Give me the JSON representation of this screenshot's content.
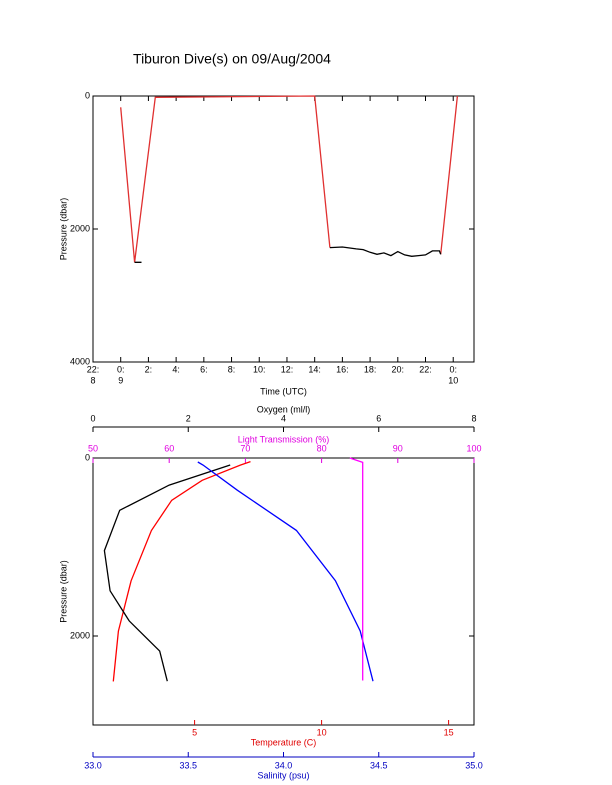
{
  "chart_data": [
    {
      "type": "line",
      "title": "Tiburon Dive(s) on 09/Aug/2004",
      "xlabel": "Time (UTC)",
      "ylabel": "Pressure (dbar)",
      "xlim": [
        -2,
        25.5
      ],
      "xticks": [
        {
          "value": -2,
          "label": "22:",
          "sublabel": "8"
        },
        {
          "value": 0,
          "label": "0:",
          "sublabel": "9"
        },
        {
          "value": 2,
          "label": "2:"
        },
        {
          "value": 4,
          "label": "4:"
        },
        {
          "value": 6,
          "label": "6:"
        },
        {
          "value": 8,
          "label": "8:"
        },
        {
          "value": 10,
          "label": "10:"
        },
        {
          "value": 12,
          "label": "12:"
        },
        {
          "value": 14,
          "label": "14:"
        },
        {
          "value": 16,
          "label": "16:"
        },
        {
          "value": 18,
          "label": "18:"
        },
        {
          "value": 20,
          "label": "20:"
        },
        {
          "value": 22,
          "label": "22:"
        },
        {
          "value": 24,
          "label": "0:",
          "sublabel": "10"
        }
      ],
      "ylim": [
        4000,
        0
      ],
      "yticks": [
        0,
        2000,
        4000
      ],
      "series": [
        {
          "color": "#e03030",
          "x": [
            0,
            1.0,
            2.5,
            14.0,
            15.1,
            null,
            23.1,
            24.3
          ],
          "values": [
            170,
            2500,
            20,
            0,
            2280,
            null,
            2380,
            0
          ]
        },
        {
          "color": "#000000",
          "x": [
            1.0,
            1.5,
            null,
            15.1,
            16,
            17,
            17.5,
            18,
            18.5,
            19,
            19.5,
            20,
            20.5,
            21,
            21.5,
            22,
            22.5,
            23,
            23.1
          ],
          "values": [
            2500,
            2500,
            null,
            2280,
            2270,
            2300,
            2310,
            2350,
            2380,
            2360,
            2400,
            2340,
            2390,
            2410,
            2400,
            2390,
            2330,
            2330,
            2380
          ]
        }
      ]
    },
    {
      "type": "line",
      "ylabel": "Pressure (dbar)",
      "ylim": [
        3000,
        0
      ],
      "yticks": [
        0,
        2000
      ],
      "axes": [
        {
          "label": "Temperature (C)",
          "color": "#e00000",
          "xlim": [
            1,
            16
          ],
          "xticks": [
            5,
            10,
            15
          ]
        },
        {
          "label": "Salinity (psu)",
          "color": "#0000c0",
          "xlim": [
            33.0,
            35.0
          ],
          "xticks": [
            {
              "value": 33.0,
              "label": "33.0"
            },
            {
              "value": 33.5,
              "label": "33.5"
            },
            {
              "value": 34.0,
              "label": "34.0"
            },
            {
              "value": 34.5,
              "label": "34.5"
            },
            {
              "value": 35.0,
              "label": "35.0"
            }
          ]
        },
        {
          "label": "Oxygen (ml/l)",
          "color": "#000000",
          "xlim": [
            0,
            8
          ],
          "xticks": [
            0,
            2,
            4,
            6,
            8
          ]
        },
        {
          "label": "Light Transmission (%)",
          "color": "#e000e0",
          "xlim": [
            50,
            100
          ],
          "xticks": [
            50,
            60,
            70,
            80,
            90,
            100
          ]
        }
      ],
      "series": [
        {
          "axis": 0,
          "color": "#ff0000",
          "x": [
            7.2,
            6.8,
            5.3,
            4.1,
            3.3,
            2.5,
            2.0,
            1.8
          ],
          "values": [
            40,
            80,
            250,
            475,
            815,
            1380,
            1945,
            2510
          ]
        },
        {
          "axis": 1,
          "color": "#000000",
          "x": [
            33.72,
            33.4,
            33.14,
            33.06,
            33.09,
            33.19,
            33.35,
            33.39
          ],
          "values": [
            79,
            305,
            588,
            1040,
            1492,
            1830,
            2170,
            2508
          ]
        },
        {
          "axis": 2,
          "color": "#0000ff",
          "x": [
            2.2,
            2.31,
            3.03,
            4.27,
            5.09,
            5.61,
            5.88
          ],
          "values": [
            45,
            79,
            362,
            814,
            1379,
            1944,
            2508
          ]
        },
        {
          "axis": 3,
          "color": "#ff00ff",
          "x": [
            83.7,
            85.4,
            85.4,
            85.4
          ],
          "values": [
            0,
            50,
            1500,
            2500
          ]
        }
      ]
    }
  ]
}
